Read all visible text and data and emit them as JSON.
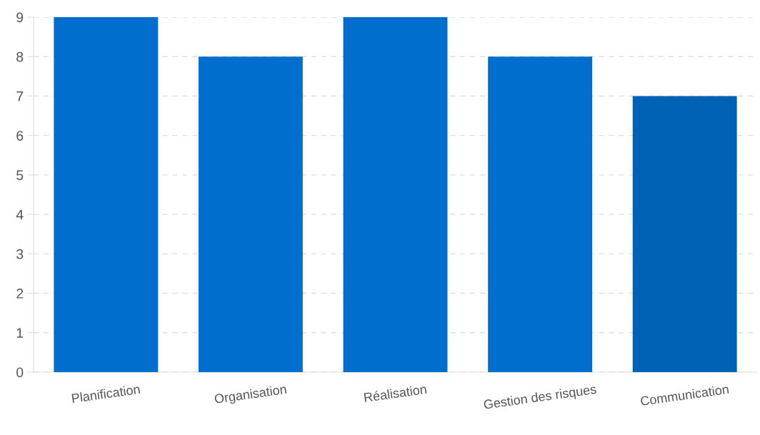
{
  "chart_data": {
    "type": "bar",
    "categories": [
      "Planification",
      "Organisation",
      "Réalisation",
      "Gestion des risques",
      "Communication"
    ],
    "values": [
      9,
      8,
      9,
      8,
      7
    ],
    "colors": [
      "#006ecc",
      "#006ecc",
      "#006ecc",
      "#006ecc",
      "#0062b5"
    ],
    "ylim": [
      0,
      9
    ],
    "yticks": [
      0,
      1,
      2,
      3,
      4,
      5,
      6,
      7,
      8,
      9
    ],
    "grid": "y"
  }
}
